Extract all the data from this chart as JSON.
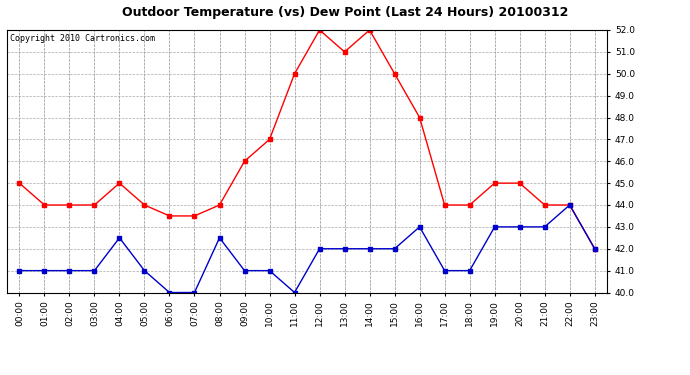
{
  "title": "Outdoor Temperature (vs) Dew Point (Last 24 Hours) 20100312",
  "copyright": "Copyright 2010 Cartronics.com",
  "hours": [
    "00:00",
    "01:00",
    "02:00",
    "03:00",
    "04:00",
    "05:00",
    "06:00",
    "07:00",
    "08:00",
    "09:00",
    "10:00",
    "11:00",
    "12:00",
    "13:00",
    "14:00",
    "15:00",
    "16:00",
    "17:00",
    "18:00",
    "19:00",
    "20:00",
    "21:00",
    "22:00",
    "23:00"
  ],
  "temp": [
    45.0,
    44.0,
    44.0,
    44.0,
    45.0,
    44.0,
    43.5,
    43.5,
    44.0,
    46.0,
    47.0,
    50.0,
    52.0,
    51.0,
    52.0,
    50.0,
    48.0,
    44.0,
    44.0,
    45.0,
    45.0,
    44.0,
    44.0,
    42.0
  ],
  "dew": [
    41.0,
    41.0,
    41.0,
    41.0,
    42.5,
    41.0,
    40.0,
    40.0,
    42.5,
    41.0,
    41.0,
    40.0,
    42.0,
    42.0,
    42.0,
    42.0,
    43.0,
    41.0,
    41.0,
    43.0,
    43.0,
    43.0,
    44.0,
    42.0
  ],
  "temp_color": "#ff0000",
  "dew_color": "#0000cc",
  "ylim": [
    40.0,
    52.0
  ],
  "yticks": [
    40.0,
    41.0,
    42.0,
    43.0,
    44.0,
    45.0,
    46.0,
    47.0,
    48.0,
    49.0,
    50.0,
    51.0,
    52.0
  ],
  "bg_color": "#ffffff",
  "grid_color": "#aaaaaa",
  "title_fontsize": 9,
  "copyright_fontsize": 6,
  "tick_fontsize": 6.5,
  "marker": "s",
  "marker_size": 2.5,
  "line_width": 1.0
}
